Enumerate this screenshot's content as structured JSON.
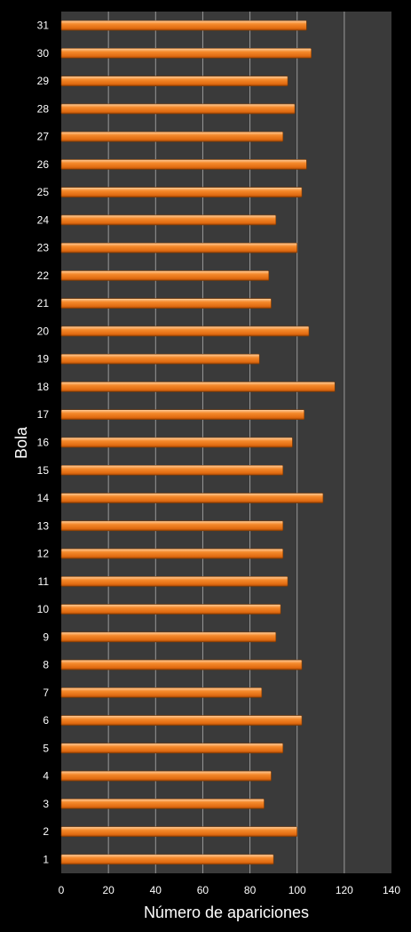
{
  "chart_data": {
    "type": "bar",
    "orientation": "horizontal",
    "xlabel": "Número de apariciones",
    "ylabel": "Bola",
    "xlim": [
      0,
      140
    ],
    "x_ticks": [
      0,
      20,
      40,
      60,
      80,
      100,
      120,
      140
    ],
    "grid": true,
    "categories": [
      "1",
      "2",
      "3",
      "4",
      "5",
      "6",
      "7",
      "8",
      "9",
      "10",
      "11",
      "12",
      "13",
      "14",
      "15",
      "16",
      "17",
      "18",
      "19",
      "20",
      "21",
      "22",
      "23",
      "24",
      "25",
      "26",
      "27",
      "28",
      "29",
      "30",
      "31"
    ],
    "values": [
      90,
      100,
      86,
      89,
      94,
      102,
      85,
      102,
      91,
      93,
      96,
      94,
      94,
      111,
      94,
      98,
      103,
      116,
      84,
      105,
      89,
      88,
      100,
      91,
      102,
      104,
      94,
      99,
      96,
      106,
      104
    ],
    "colors": {
      "background": "#000000",
      "plot_area": "#3a3a3a",
      "bar": "#f07818",
      "grid": "#9a9a9a",
      "text": "#ffffff"
    }
  }
}
